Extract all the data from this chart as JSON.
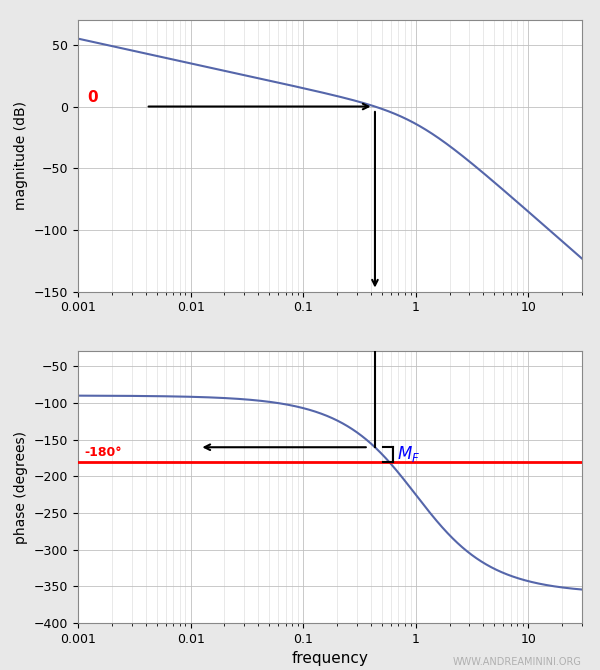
{
  "freq_min": 0.001,
  "freq_max": 30,
  "K": 0.562,
  "mag_ylim": [
    -150,
    70
  ],
  "mag_yticks": [
    -150,
    -100,
    -50,
    0,
    50
  ],
  "phase_ylim": [
    -400,
    -30
  ],
  "phase_yticks": [
    -400,
    -350,
    -300,
    -250,
    -200,
    -150,
    -100,
    -50
  ],
  "xticks": [
    0.001,
    0.01,
    0.1,
    1,
    10
  ],
  "xticklabels": [
    "0.001",
    "0.01",
    "0.1",
    "1",
    "10"
  ],
  "curve_color": "#5566aa",
  "arrow_color": "black",
  "red_line_color": "red",
  "annotation_color_0": "red",
  "annotation_color_mf": "blue",
  "mag_ylabel": "magnitude (dB)",
  "phase_ylabel": "phase (degrees)",
  "xlabel": "frequency",
  "watermark": "WWW.ANDREAMININI.ORG",
  "fig_bg": "#e8e8e8",
  "axes_bg": "white",
  "grid_major_color": "#c0c0c0",
  "grid_minor_color": "#d8d8d8",
  "label_180": "-180°",
  "label_0": "0",
  "figsize": [
    6.0,
    6.7
  ],
  "dpi": 100
}
